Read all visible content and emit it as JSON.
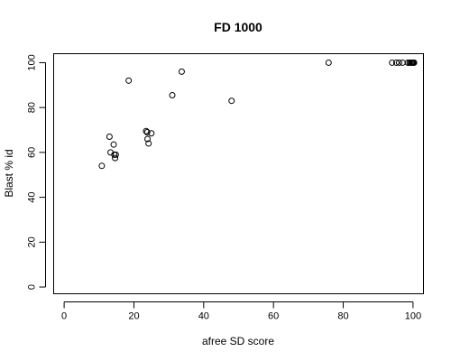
{
  "chart_data": {
    "type": "scatter",
    "title": "FD 1000",
    "xlabel": "afree SD score",
    "ylabel": "Blast % id",
    "xlim": [
      -3,
      103
    ],
    "ylim": [
      -3,
      104
    ],
    "x_ticks": [
      0,
      20,
      40,
      60,
      80,
      100
    ],
    "y_ticks": [
      0,
      20,
      40,
      60,
      80,
      100
    ],
    "x_tick_labels": [
      "0",
      "20",
      "40",
      "60",
      "80",
      "100"
    ],
    "y_tick_labels": [
      "0",
      "20",
      "40",
      "60",
      "80",
      "100"
    ],
    "grid": false,
    "legend": "none",
    "marker": "open-circle",
    "color": "#000000",
    "points": [
      {
        "x": 10.8,
        "y": 54
      },
      {
        "x": 13.0,
        "y": 67
      },
      {
        "x": 13.3,
        "y": 60
      },
      {
        "x": 14.2,
        "y": 63.5
      },
      {
        "x": 14.4,
        "y": 59
      },
      {
        "x": 14.6,
        "y": 57.5
      },
      {
        "x": 14.8,
        "y": 59
      },
      {
        "x": 18.5,
        "y": 92
      },
      {
        "x": 23.5,
        "y": 69.5
      },
      {
        "x": 23.8,
        "y": 69
      },
      {
        "x": 23.9,
        "y": 66
      },
      {
        "x": 24.2,
        "y": 64
      },
      {
        "x": 25.0,
        "y": 68.5
      },
      {
        "x": 31.0,
        "y": 85.5
      },
      {
        "x": 33.7,
        "y": 96
      },
      {
        "x": 48.0,
        "y": 83
      },
      {
        "x": 75.8,
        "y": 100
      },
      {
        "x": 94.0,
        "y": 100
      },
      {
        "x": 95.2,
        "y": 100
      },
      {
        "x": 96.0,
        "y": 100
      },
      {
        "x": 97.0,
        "y": 100
      },
      {
        "x": 98.5,
        "y": 100
      },
      {
        "x": 99.0,
        "y": 100
      },
      {
        "x": 99.3,
        "y": 100
      },
      {
        "x": 99.6,
        "y": 100
      },
      {
        "x": 99.8,
        "y": 100
      },
      {
        "x": 100.0,
        "y": 100
      },
      {
        "x": 100.2,
        "y": 100
      },
      {
        "x": 100.3,
        "y": 100
      }
    ]
  }
}
